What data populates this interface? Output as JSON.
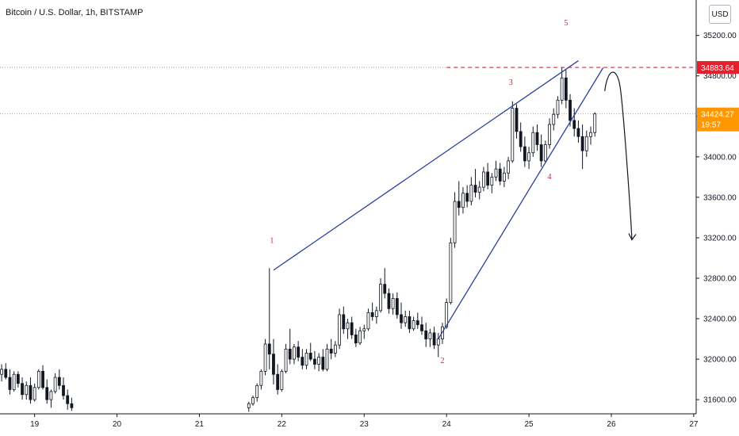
{
  "header": {
    "title": "Bitcoin / U.S. Dollar, 1h, BITSTAMP",
    "currency_button": "USD"
  },
  "colors": {
    "up": "#ffffff",
    "down": "#131722",
    "candle_outline": "#131722",
    "trendline": "#2a3f9c",
    "wave_label": "#c2272d",
    "resistance": "#e91e2c",
    "last_price": "#ff9800",
    "axis_text": "#131722"
  },
  "price_tags": {
    "resistance": {
      "value": "34883.64",
      "color": "#e91e2c"
    },
    "last": {
      "value": "34424.27",
      "countdown": "19:57",
      "color": "#ff9800"
    }
  },
  "chart_data": {
    "type": "candlestick",
    "title": "Bitcoin / U.S. Dollar, 1h, BITSTAMP",
    "xlabel": "",
    "ylabel": "",
    "ylim": [
      31460,
      35550
    ],
    "xlim": [
      18.58,
      27.03
    ],
    "y_ticks": [
      "31600.00",
      "32000.00",
      "32400.00",
      "32800.00",
      "33200.00",
      "33600.00",
      "34000.00",
      "34400.00",
      "34800.00",
      "35200.00",
      "35600.00"
    ],
    "y_tick_values": [
      31600,
      32000,
      32400,
      32800,
      33200,
      33600,
      34000,
      34400,
      34800,
      35200,
      35600
    ],
    "x_ticks": [
      "19",
      "20",
      "21",
      "22",
      "23",
      "24",
      "25",
      "26",
      "27"
    ],
    "x_tick_values": [
      19,
      20,
      21,
      22,
      23,
      24,
      25,
      26,
      27
    ],
    "grid": false,
    "candles": [
      [
        18.6,
        31850,
        31950,
        31780,
        31900
      ],
      [
        18.65,
        31900,
        31960,
        31800,
        31820
      ],
      [
        18.7,
        31820,
        31900,
        31650,
        31700
      ],
      [
        18.75,
        31700,
        31880,
        31680,
        31850
      ],
      [
        18.8,
        31850,
        31880,
        31720,
        31760
      ],
      [
        18.85,
        31760,
        31820,
        31600,
        31650
      ],
      [
        18.9,
        31650,
        31780,
        31600,
        31740
      ],
      [
        18.95,
        31740,
        31820,
        31560,
        31600
      ],
      [
        19.0,
        31600,
        31760,
        31580,
        31720
      ],
      [
        19.05,
        31720,
        31900,
        31700,
        31880
      ],
      [
        19.1,
        31880,
        31940,
        31700,
        31720
      ],
      [
        19.15,
        31720,
        31800,
        31560,
        31600
      ],
      [
        19.2,
        31600,
        31700,
        31520,
        31680
      ],
      [
        19.25,
        31680,
        31860,
        31660,
        31820
      ],
      [
        19.3,
        31820,
        31900,
        31700,
        31740
      ],
      [
        19.35,
        31740,
        31820,
        31600,
        31640
      ],
      [
        19.4,
        31640,
        31700,
        31500,
        31560
      ],
      [
        19.45,
        31560,
        31620,
        31490,
        31520
      ],
      [
        21.6,
        31520,
        31580,
        31480,
        31560
      ],
      [
        21.65,
        31560,
        31640,
        31540,
        31620
      ],
      [
        21.7,
        31620,
        31760,
        31580,
        31740
      ],
      [
        21.75,
        31740,
        31900,
        31700,
        31880
      ],
      [
        21.8,
        31880,
        32200,
        31840,
        32150
      ],
      [
        21.85,
        32150,
        32900,
        31900,
        32050
      ],
      [
        21.9,
        32050,
        32200,
        31750,
        31850
      ],
      [
        21.95,
        31850,
        31950,
        31650,
        31700
      ],
      [
        22.0,
        31700,
        31900,
        31680,
        31880
      ],
      [
        22.05,
        31880,
        32150,
        31860,
        32100
      ],
      [
        22.1,
        32100,
        32300,
        31950,
        32000
      ],
      [
        22.15,
        32000,
        32150,
        31950,
        32120
      ],
      [
        22.2,
        32120,
        32180,
        31980,
        32020
      ],
      [
        22.25,
        32020,
        32100,
        31900,
        31940
      ],
      [
        22.3,
        31940,
        32100,
        31900,
        32060
      ],
      [
        22.35,
        32060,
        32160,
        31980,
        32000
      ],
      [
        22.4,
        32000,
        32080,
        31900,
        31950
      ],
      [
        22.45,
        31950,
        32060,
        31880,
        32020
      ],
      [
        22.5,
        32020,
        32100,
        31880,
        31900
      ],
      [
        22.55,
        31900,
        32150,
        31880,
        32100
      ],
      [
        22.6,
        32100,
        32200,
        32000,
        32060
      ],
      [
        22.65,
        32060,
        32180,
        32020,
        32140
      ],
      [
        22.7,
        32140,
        32500,
        32100,
        32440
      ],
      [
        22.75,
        32440,
        32520,
        32250,
        32300
      ],
      [
        22.8,
        32300,
        32400,
        32200,
        32360
      ],
      [
        22.85,
        32360,
        32420,
        32200,
        32240
      ],
      [
        22.9,
        32240,
        32300,
        32120,
        32160
      ],
      [
        22.95,
        32160,
        32320,
        32140,
        32280
      ],
      [
        23.0,
        32280,
        32340,
        32200,
        32300
      ],
      [
        23.05,
        32300,
        32500,
        32280,
        32460
      ],
      [
        23.1,
        32460,
        32560,
        32380,
        32420
      ],
      [
        23.15,
        32420,
        32520,
        32350,
        32480
      ],
      [
        23.2,
        32480,
        32800,
        32460,
        32740
      ],
      [
        23.25,
        32740,
        32900,
        32600,
        32650
      ],
      [
        23.3,
        32650,
        32700,
        32450,
        32500
      ],
      [
        23.35,
        32500,
        32650,
        32440,
        32600
      ],
      [
        23.4,
        32600,
        32660,
        32400,
        32440
      ],
      [
        23.45,
        32440,
        32560,
        32300,
        32360
      ],
      [
        23.5,
        32360,
        32480,
        32320,
        32420
      ],
      [
        23.55,
        32420,
        32480,
        32260,
        32300
      ],
      [
        23.6,
        32300,
        32420,
        32280,
        32380
      ],
      [
        23.65,
        32380,
        32460,
        32300,
        32340
      ],
      [
        23.7,
        32340,
        32420,
        32240,
        32280
      ],
      [
        23.75,
        32280,
        32360,
        32120,
        32200
      ],
      [
        23.8,
        32200,
        32300,
        32120,
        32260
      ],
      [
        23.85,
        32260,
        32320,
        32100,
        32140
      ],
      [
        23.9,
        32140,
        32260,
        32020,
        32200
      ],
      [
        23.95,
        32200,
        32360,
        32150,
        32320
      ],
      [
        24.0,
        32320,
        32600,
        32300,
        32560
      ],
      [
        24.05,
        32560,
        33200,
        32540,
        33150
      ],
      [
        24.1,
        33150,
        33650,
        33100,
        33560
      ],
      [
        24.15,
        33560,
        33760,
        33420,
        33500
      ],
      [
        24.2,
        33500,
        33700,
        33440,
        33640
      ],
      [
        24.25,
        33640,
        33720,
        33500,
        33560
      ],
      [
        24.3,
        33560,
        33800,
        33520,
        33720
      ],
      [
        24.35,
        33720,
        33880,
        33600,
        33650
      ],
      [
        24.4,
        33650,
        33760,
        33580,
        33700
      ],
      [
        24.45,
        33700,
        33900,
        33660,
        33850
      ],
      [
        24.5,
        33850,
        33940,
        33680,
        33720
      ],
      [
        24.55,
        33720,
        33840,
        33640,
        33800
      ],
      [
        24.6,
        33800,
        33960,
        33760,
        33880
      ],
      [
        24.65,
        33880,
        33940,
        33720,
        33760
      ],
      [
        24.7,
        33760,
        33900,
        33700,
        33840
      ],
      [
        24.75,
        33840,
        34000,
        33780,
        33960
      ],
      [
        24.8,
        33960,
        34550,
        33940,
        34480
      ],
      [
        24.85,
        34480,
        34520,
        34180,
        34250
      ],
      [
        24.9,
        34250,
        34340,
        34050,
        34100
      ],
      [
        24.95,
        34100,
        34200,
        33900,
        33960
      ],
      [
        25.0,
        33960,
        34100,
        33880,
        34040
      ],
      [
        25.05,
        34040,
        34300,
        34000,
        34240
      ],
      [
        25.1,
        34240,
        34320,
        34060,
        34120
      ],
      [
        25.15,
        34120,
        34220,
        33900,
        33960
      ],
      [
        25.2,
        33960,
        34160,
        33940,
        34120
      ],
      [
        25.25,
        34120,
        34380,
        34080,
        34320
      ],
      [
        25.3,
        34320,
        34480,
        34260,
        34420
      ],
      [
        25.35,
        34420,
        34600,
        34380,
        34560
      ],
      [
        25.4,
        34560,
        34880,
        34520,
        34780
      ],
      [
        25.45,
        34780,
        34860,
        34480,
        34560
      ],
      [
        25.5,
        34560,
        34620,
        34300,
        34360
      ],
      [
        25.55,
        34360,
        34480,
        34200,
        34280
      ],
      [
        25.6,
        34280,
        34360,
        34140,
        34200
      ],
      [
        25.65,
        34200,
        34320,
        33880,
        34060
      ],
      [
        25.7,
        34060,
        34260,
        34000,
        34200
      ],
      [
        25.75,
        34200,
        34300,
        34120,
        34240
      ],
      [
        25.8,
        34240,
        34440,
        34200,
        34424
      ]
    ],
    "trendlines": [
      {
        "name": "upper-wedge-line",
        "from": [
          21.9,
          32880
        ],
        "to": [
          25.6,
          34950
        ]
      },
      {
        "name": "lower-wedge-line",
        "from": [
          23.9,
          32200
        ],
        "to": [
          25.9,
          34880
        ]
      }
    ],
    "horizontal_lines": [
      {
        "name": "resistance-line",
        "y": 34883.64,
        "style": "dashed",
        "from_x": 24.0,
        "to_x": 27.03
      },
      {
        "name": "resistance-dotted-line",
        "y": 34883.64,
        "style": "dotted",
        "from_x": 18.58,
        "to_x": 24.0
      },
      {
        "name": "last-price-line",
        "y": 34424.27,
        "style": "dotted",
        "from_x": 18.58,
        "to_x": 27.03
      }
    ],
    "wave_labels": [
      {
        "text": "1",
        "x": 21.88,
        "y": 33150
      },
      {
        "text": "2",
        "x": 23.95,
        "y": 31960
      },
      {
        "text": "3",
        "x": 24.78,
        "y": 34710
      },
      {
        "text": "4",
        "x": 25.25,
        "y": 33780
      },
      {
        "text": "5",
        "x": 25.45,
        "y": 35300
      }
    ],
    "projection_arrow": {
      "from": [
        25.92,
        34650
      ],
      "peak": [
        25.97,
        34780
      ],
      "to": [
        26.25,
        33180
      ]
    }
  }
}
